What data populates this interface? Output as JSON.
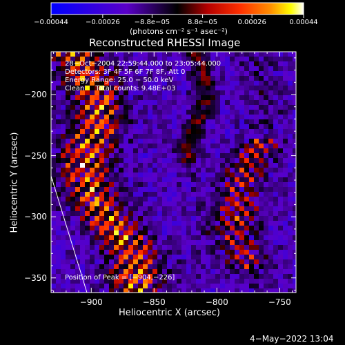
{
  "chart_data": {
    "type": "heatmap",
    "title": "Reconstructed RHESSI Image",
    "xlabel": "Heliocentric X (arcsec)",
    "ylabel": "Heliocentric Y (arcsec)",
    "xlim": [
      -932,
      -737
    ],
    "ylim": [
      -362,
      -165
    ],
    "x_ticks": [
      -900,
      -850,
      -800,
      -750
    ],
    "x_tick_labels": [
      "−900",
      "−850",
      "−800",
      "−750"
    ],
    "y_ticks": [
      -200,
      -250,
      -300,
      -350
    ],
    "y_tick_labels": [
      "−200",
      "−250",
      "−300",
      "−350"
    ],
    "colorbar": {
      "range": [
        -0.00044,
        0.00044
      ],
      "ticks": [
        -0.00044,
        -0.00026,
        -8.8e-05,
        8.8e-05,
        0.00026,
        0.00044
      ],
      "tick_labels": [
        "−0.00044",
        "−0.00026",
        "−8.8e−05",
        "8.8e−05",
        "0.00026",
        "0.00044"
      ],
      "unit_label": "(photons cm⁻² s⁻¹ asec⁻²)",
      "colors": [
        "#0000ff",
        "#5a00c8",
        "#000000",
        "#b40000",
        "#ff3000",
        "#ff9000",
        "#ffff00",
        "#ffffff"
      ]
    },
    "annotations": [
      "28−Oct−2004 22:59:44.000 to 23:05:44.000",
      "Detectors: 3F 4F 5F 6F 7F 8F, Att 0",
      "Energy Range: 25.0 − 50.0 keV",
      "Clean     Total counts: 9.48E+03"
    ],
    "peak_label": "Position of Peak = [−904,−226]",
    "peak": [
      -904,
      -226
    ]
  },
  "footer": {
    "timestamp": "4−May−2022 13:04"
  }
}
